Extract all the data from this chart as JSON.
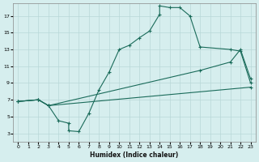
{
  "title": "",
  "xlabel": "Humidex (Indice chaleur)",
  "bg_color": "#d6eeee",
  "grid_color": "#b8d8d8",
  "line_color": "#1a6b5a",
  "xlim": [
    -0.5,
    23.5
  ],
  "ylim": [
    2,
    18.5
  ],
  "xticks": [
    0,
    1,
    2,
    3,
    4,
    5,
    6,
    7,
    8,
    9,
    10,
    11,
    12,
    13,
    14,
    15,
    16,
    17,
    18,
    19,
    20,
    21,
    22,
    23
  ],
  "yticks": [
    3,
    5,
    7,
    9,
    11,
    13,
    15,
    17
  ],
  "line1_x": [
    0,
    2,
    3,
    4,
    5,
    5,
    6,
    7,
    8,
    9,
    10,
    11,
    12,
    13,
    14,
    14,
    15,
    16,
    17,
    18,
    21,
    22,
    23
  ],
  "line1_y": [
    6.8,
    7.0,
    6.3,
    4.5,
    4.2,
    3.3,
    3.2,
    5.4,
    8.2,
    10.3,
    13.0,
    13.5,
    14.4,
    15.2,
    17.2,
    18.2,
    18.0,
    18.0,
    17.0,
    13.3,
    13.0,
    12.8,
    9.0
  ],
  "line2_x": [
    0,
    2,
    3,
    18,
    21,
    22,
    23
  ],
  "line2_y": [
    6.8,
    7.0,
    6.3,
    10.5,
    11.5,
    13.0,
    9.5
  ],
  "line3_x": [
    0,
    2,
    3,
    23
  ],
  "line3_y": [
    6.8,
    7.0,
    6.3,
    8.5
  ]
}
